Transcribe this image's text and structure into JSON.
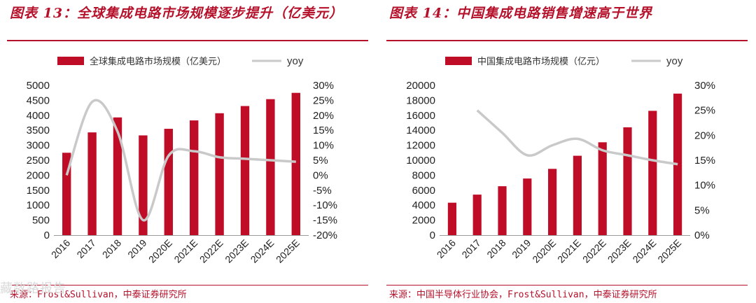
{
  "watermark": "藏数路报告",
  "colors": {
    "bar": "#c00d27",
    "line": "#c9c9c9",
    "accent": "#b5112b"
  },
  "chart_data": [
    {
      "type": "bar",
      "title": "图表 13：全球集成电路市场规模逐步提升（亿美元）",
      "source": "来源：Frost&Sullivan，中泰证券研究所",
      "categories": [
        "2016",
        "2017",
        "2018",
        "2019",
        "2020E",
        "2021E",
        "2022E",
        "2023E",
        "2024E",
        "2025E"
      ],
      "series": [
        {
          "name": "全球集成电路市场规模（亿美元）",
          "type": "bar",
          "axis": "left",
          "values": [
            2750,
            3430,
            3930,
            3330,
            3550,
            3830,
            4070,
            4310,
            4540,
            4750
          ]
        },
        {
          "name": "yoy",
          "type": "line",
          "axis": "right",
          "values": [
            0.0,
            24.5,
            14.5,
            -15.0,
            6.5,
            8.0,
            6.0,
            5.5,
            5.0,
            4.5
          ]
        }
      ],
      "ylim": [
        0,
        5000
      ],
      "yticks": [
        0,
        500,
        1000,
        1500,
        2000,
        2500,
        3000,
        3500,
        4000,
        4500,
        5000
      ],
      "ylim_right": [
        -20,
        30
      ],
      "yticks_right": [
        "-20%",
        "-15%",
        "-10%",
        "-5%",
        "0%",
        "5%",
        "10%",
        "15%",
        "20%",
        "25%",
        "30%"
      ],
      "yticks_right_values": [
        -20,
        -15,
        -10,
        -5,
        0,
        5,
        10,
        15,
        20,
        25,
        30
      ]
    },
    {
      "type": "bar",
      "title": "图表 14：中国集成电路销售增速高于世界",
      "source": "来源：中国半导体行业协会，Frost&Sullivan，中泰证券研究所",
      "categories": [
        "2016",
        "2017",
        "2018",
        "2019",
        "2020E",
        "2021E",
        "2022E",
        "2023E",
        "2024E",
        "2025E"
      ],
      "series": [
        {
          "name": "中国集成电路市场规模（亿元）",
          "type": "bar",
          "axis": "left",
          "values": [
            4330,
            5410,
            6530,
            7560,
            8850,
            10600,
            12400,
            14400,
            16600,
            18900
          ]
        },
        {
          "name": "yoy",
          "type": "line",
          "axis": "right",
          "values": [
            null,
            25.0,
            20.5,
            16.0,
            18.0,
            19.3,
            17.0,
            16.0,
            15.0,
            14.2
          ]
        }
      ],
      "ylim": [
        0,
        20000
      ],
      "yticks": [
        0,
        2000,
        4000,
        6000,
        8000,
        10000,
        12000,
        14000,
        16000,
        18000,
        20000
      ],
      "ylim_right": [
        0,
        30
      ],
      "yticks_right": [
        "0%",
        "5%",
        "10%",
        "15%",
        "20%",
        "25%",
        "30%"
      ],
      "yticks_right_values": [
        0,
        5,
        10,
        15,
        20,
        25,
        30
      ]
    }
  ]
}
